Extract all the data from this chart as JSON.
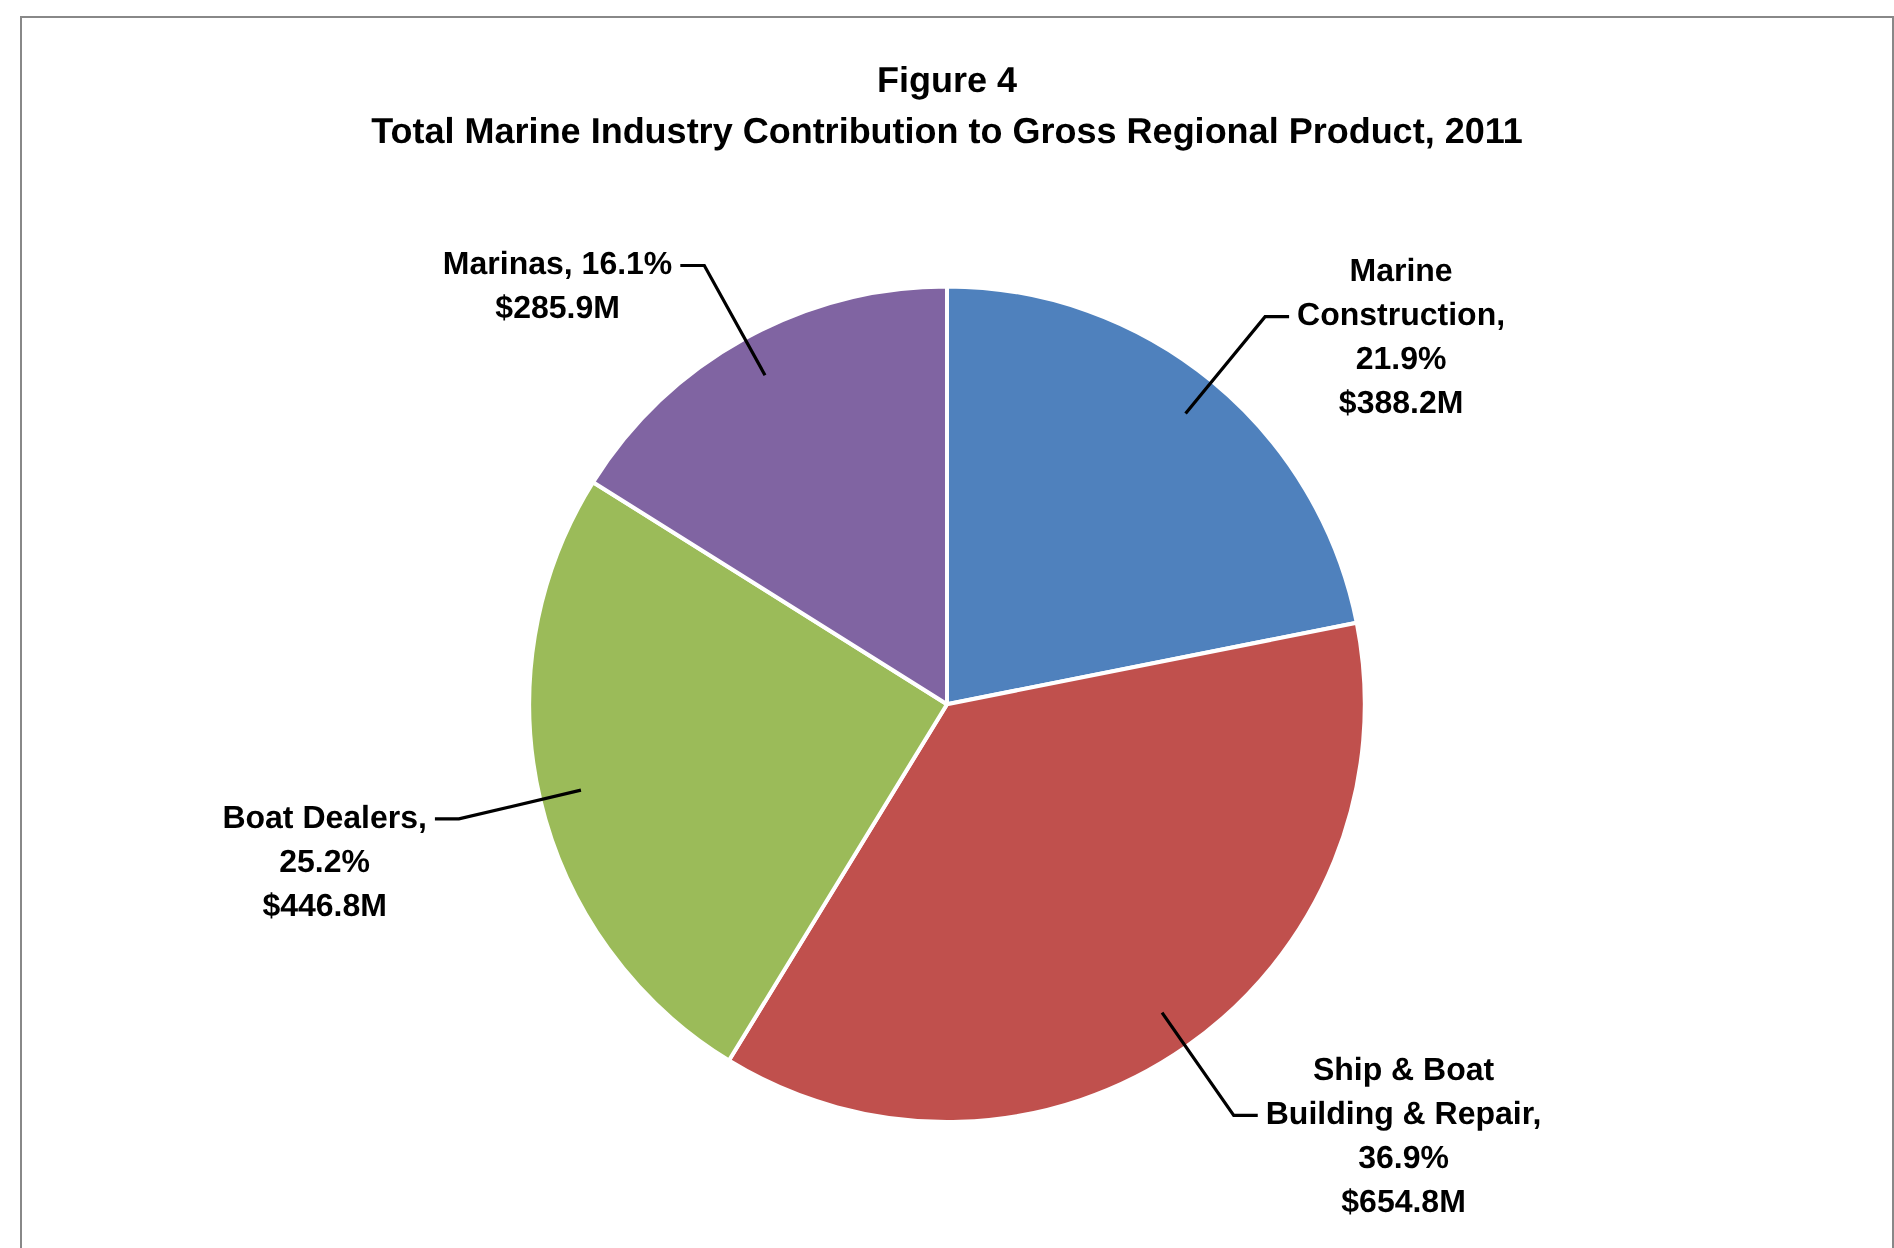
{
  "chart_data": {
    "type": "pie",
    "title": "Figure 4",
    "subtitle": "Total Marine Industry Contribution to Gross Regional Product, 2011",
    "categories": [
      "Marine Construction",
      "Ship & Boat Building & Repair",
      "Boat Dealers",
      "Marinas"
    ],
    "values": [
      21.9,
      36.9,
      25.2,
      16.1
    ],
    "colors": [
      "#4f81bd",
      "#c0504d",
      "#9bbb59",
      "#8064a2"
    ],
    "value_labels": [
      ", 21.9% $388.2M",
      ", 36.9% $654.8M",
      ", 25.2% $446.8M",
      ", 16.1% $285.9M"
    ]
  }
}
